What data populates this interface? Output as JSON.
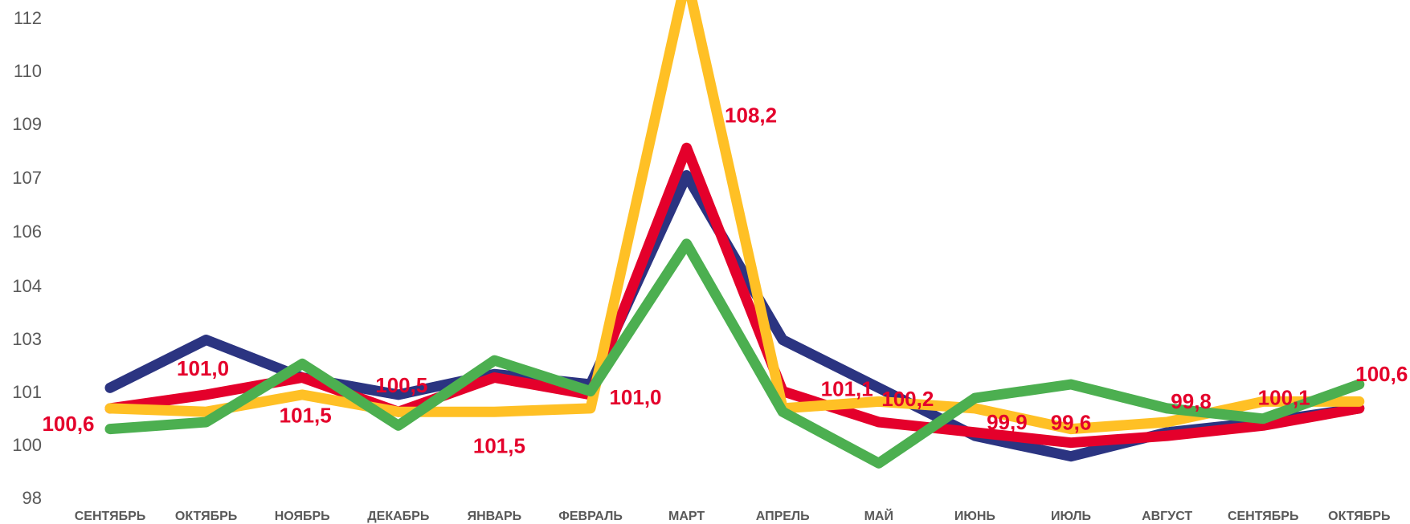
{
  "chart_data": {
    "type": "line",
    "title": "",
    "xlabel": "",
    "ylabel": "",
    "categories": [
      "СЕНТЯБРЬ",
      "ОКТЯБРЬ",
      "НОЯБРЬ",
      "ДЕКАБРЬ",
      "ЯНВАРЬ",
      "ФЕВРАЛЬ",
      "МАРТ",
      "АПРЕЛЬ",
      "МАЙ",
      "ИЮНЬ",
      "ИЮЛЬ",
      "АВГУСТ",
      "СЕНТЯБРЬ",
      "ОКТЯБРЬ"
    ],
    "y_ticks": [
      "98",
      "100",
      "101",
      "103",
      "104",
      "106",
      "107",
      "109",
      "110",
      "112"
    ],
    "ylim": [
      98,
      112
    ],
    "grid": false,
    "legend": "none",
    "series": [
      {
        "color": "#2B3481",
        "values": [
          101.2,
          102.6,
          101.5,
          101.0,
          101.6,
          101.3,
          107.4,
          102.6,
          101.2,
          99.8,
          99.2,
          99.9,
          100.2,
          100.6
        ]
      },
      {
        "color": "#E4002B",
        "values": [
          100.6,
          101.0,
          101.5,
          100.5,
          101.5,
          101.0,
          108.2,
          101.1,
          100.2,
          99.9,
          99.6,
          99.8,
          100.1,
          100.6
        ]
      },
      {
        "color": "#FFC025",
        "values": [
          100.6,
          100.5,
          101.0,
          100.5,
          100.5,
          100.6,
          113.2,
          100.6,
          100.8,
          100.6,
          100.0,
          100.2,
          100.8,
          100.8
        ]
      },
      {
        "color": "#4CAF50",
        "values": [
          100.0,
          100.2,
          101.9,
          100.1,
          102.0,
          101.1,
          105.4,
          100.5,
          99.0,
          100.9,
          101.3,
          100.6,
          100.3,
          101.3
        ]
      }
    ],
    "data_labels": {
      "color": "#E4002B",
      "series_index": 1,
      "texts": [
        "100,6",
        "101,0",
        "101,5",
        "100,5",
        "101,5",
        "101,0",
        "108,2",
        "101,1",
        "100,2",
        "99,9",
        "99,6",
        "99,8",
        "100,1",
        "100,6"
      ]
    }
  }
}
